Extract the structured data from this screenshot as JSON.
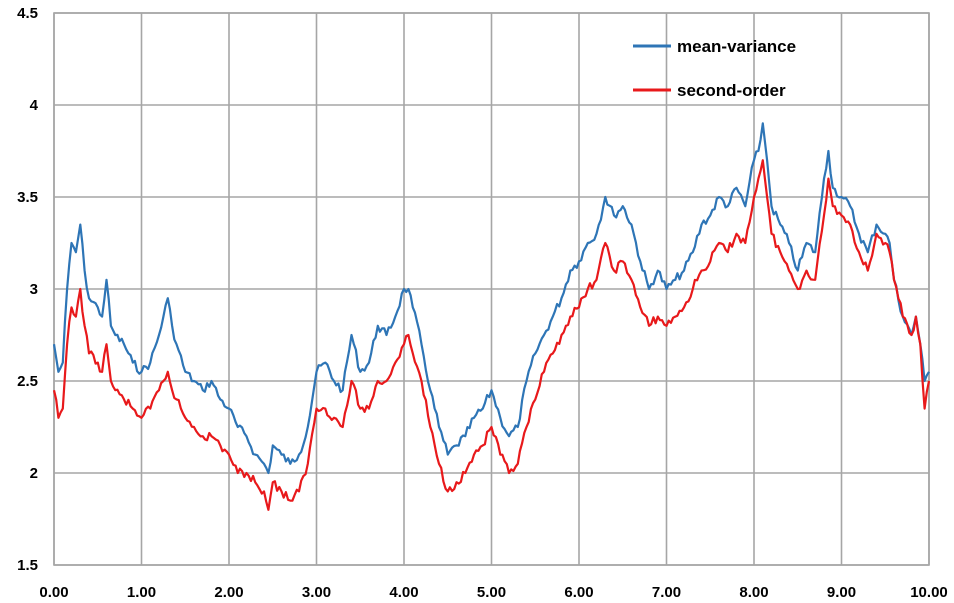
{
  "chart_data": {
    "type": "line",
    "title": "",
    "xlabel": "",
    "ylabel": "",
    "xlim": [
      0,
      10
    ],
    "ylim": [
      1.5,
      4.5
    ],
    "x_ticks": [
      0,
      1,
      2,
      3,
      4,
      5,
      6,
      7,
      8,
      9,
      10
    ],
    "x_tick_labels": [
      "0.00",
      "1.00",
      "2.00",
      "3.00",
      "4.00",
      "5.00",
      "6.00",
      "7.00",
      "8.00",
      "9.00",
      "10.00"
    ],
    "y_ticks": [
      1.5,
      2,
      2.5,
      3,
      3.5,
      4,
      4.5
    ],
    "y_tick_labels": [
      "1.5",
      "2",
      "2.5",
      "3",
      "3.5",
      "4",
      "4.5"
    ],
    "grid": true,
    "legend": "top-right",
    "x": [
      0.0,
      0.05,
      0.1,
      0.15,
      0.2,
      0.25,
      0.3,
      0.35,
      0.4,
      0.5,
      0.55,
      0.6,
      0.65,
      0.7,
      0.8,
      0.9,
      1.0,
      1.1,
      1.2,
      1.25,
      1.3,
      1.35,
      1.4,
      1.5,
      1.6,
      1.7,
      1.8,
      1.9,
      2.0,
      2.1,
      2.2,
      2.3,
      2.4,
      2.45,
      2.5,
      2.6,
      2.7,
      2.8,
      2.9,
      3.0,
      3.1,
      3.2,
      3.3,
      3.4,
      3.5,
      3.6,
      3.7,
      3.8,
      3.9,
      4.0,
      4.05,
      4.1,
      4.2,
      4.3,
      4.4,
      4.5,
      4.6,
      4.7,
      4.8,
      4.9,
      5.0,
      5.1,
      5.2,
      5.3,
      5.4,
      5.5,
      5.6,
      5.7,
      5.8,
      5.9,
      6.0,
      6.1,
      6.2,
      6.3,
      6.4,
      6.5,
      6.6,
      6.7,
      6.8,
      6.9,
      7.0,
      7.1,
      7.2,
      7.3,
      7.4,
      7.5,
      7.6,
      7.7,
      7.8,
      7.9,
      8.0,
      8.05,
      8.1,
      8.15,
      8.2,
      8.3,
      8.4,
      8.5,
      8.6,
      8.7,
      8.8,
      8.85,
      8.9,
      9.0,
      9.1,
      9.2,
      9.3,
      9.4,
      9.5,
      9.55,
      9.6,
      9.7,
      9.8,
      9.85,
      9.9,
      9.95,
      10.0
    ],
    "series": [
      {
        "name": "mean-variance",
        "color": "#2e75b6",
        "values": [
          2.7,
          2.55,
          2.6,
          3.0,
          3.25,
          3.2,
          3.35,
          3.1,
          2.95,
          2.9,
          2.85,
          3.05,
          2.8,
          2.75,
          2.7,
          2.6,
          2.55,
          2.6,
          2.75,
          2.85,
          2.95,
          2.8,
          2.7,
          2.55,
          2.5,
          2.45,
          2.5,
          2.4,
          2.35,
          2.25,
          2.2,
          2.1,
          2.05,
          2.0,
          2.15,
          2.1,
          2.05,
          2.1,
          2.25,
          2.55,
          2.6,
          2.5,
          2.45,
          2.75,
          2.55,
          2.6,
          2.8,
          2.75,
          2.85,
          3.0,
          3.0,
          2.9,
          2.7,
          2.45,
          2.25,
          2.1,
          2.15,
          2.2,
          2.3,
          2.35,
          2.45,
          2.3,
          2.2,
          2.25,
          2.5,
          2.65,
          2.75,
          2.85,
          2.95,
          3.1,
          3.15,
          3.25,
          3.3,
          3.5,
          3.4,
          3.45,
          3.35,
          3.15,
          3.0,
          3.1,
          3.0,
          3.05,
          3.1,
          3.2,
          3.35,
          3.4,
          3.5,
          3.45,
          3.55,
          3.45,
          3.7,
          3.75,
          3.9,
          3.7,
          3.45,
          3.35,
          3.25,
          3.1,
          3.25,
          3.2,
          3.6,
          3.75,
          3.55,
          3.5,
          3.45,
          3.3,
          3.2,
          3.35,
          3.3,
          3.25,
          3.05,
          2.85,
          2.75,
          2.85,
          2.7,
          2.5,
          2.55
        ]
      },
      {
        "name": "second-order",
        "color": "#e8191b",
        "values": [
          2.45,
          2.3,
          2.35,
          2.7,
          2.9,
          2.85,
          3.0,
          2.8,
          2.65,
          2.6,
          2.55,
          2.7,
          2.5,
          2.45,
          2.4,
          2.35,
          2.3,
          2.35,
          2.45,
          2.5,
          2.55,
          2.45,
          2.4,
          2.3,
          2.25,
          2.2,
          2.2,
          2.15,
          2.1,
          2.0,
          2.0,
          1.95,
          1.9,
          1.8,
          1.95,
          1.9,
          1.85,
          1.9,
          2.05,
          2.35,
          2.35,
          2.3,
          2.25,
          2.5,
          2.35,
          2.35,
          2.5,
          2.5,
          2.6,
          2.7,
          2.75,
          2.65,
          2.5,
          2.25,
          2.05,
          1.9,
          1.95,
          2.0,
          2.1,
          2.15,
          2.25,
          2.1,
          2.0,
          2.05,
          2.25,
          2.4,
          2.55,
          2.65,
          2.75,
          2.85,
          2.9,
          3.0,
          3.05,
          3.25,
          3.1,
          3.15,
          3.05,
          2.9,
          2.8,
          2.85,
          2.8,
          2.85,
          2.9,
          3.0,
          3.1,
          3.15,
          3.25,
          3.2,
          3.3,
          3.25,
          3.5,
          3.6,
          3.7,
          3.5,
          3.3,
          3.2,
          3.1,
          3.0,
          3.1,
          3.05,
          3.4,
          3.6,
          3.45,
          3.4,
          3.35,
          3.2,
          3.1,
          3.3,
          3.25,
          3.2,
          3.05,
          2.85,
          2.75,
          2.85,
          2.7,
          2.35,
          2.5
        ]
      }
    ]
  }
}
